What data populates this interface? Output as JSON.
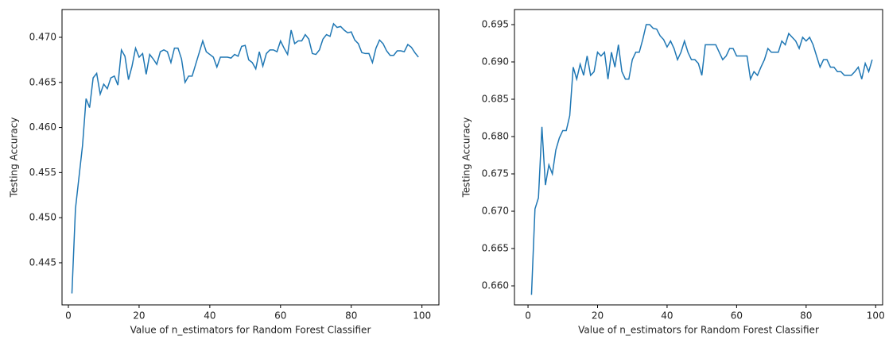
{
  "chart_data": [
    {
      "type": "line",
      "xlabel": "Value of n_estimators for Random Forest Classifier",
      "ylabel": "Testing Accuracy",
      "color": "#1f77b4",
      "x": [
        1,
        2,
        3,
        4,
        5,
        6,
        7,
        8,
        9,
        10,
        11,
        12,
        13,
        14,
        15,
        16,
        17,
        18,
        19,
        20,
        21,
        22,
        23,
        24,
        25,
        26,
        27,
        28,
        29,
        30,
        31,
        32,
        33,
        34,
        35,
        36,
        37,
        38,
        39,
        40,
        41,
        42,
        43,
        44,
        45,
        46,
        47,
        48,
        49,
        50,
        51,
        52,
        53,
        54,
        55,
        56,
        57,
        58,
        59,
        60,
        61,
        62,
        63,
        64,
        65,
        66,
        67,
        68,
        69,
        70,
        71,
        72,
        73,
        74,
        75,
        76,
        77,
        78,
        79,
        80,
        81,
        82,
        83,
        84,
        85,
        86,
        87,
        88,
        89,
        90,
        91,
        92,
        93,
        94,
        95,
        96,
        97,
        98,
        99
      ],
      "values": [
        0.4416,
        0.451,
        0.4545,
        0.458,
        0.4632,
        0.4622,
        0.4655,
        0.466,
        0.4637,
        0.4648,
        0.4643,
        0.4655,
        0.4657,
        0.4647,
        0.4686,
        0.4679,
        0.4653,
        0.4668,
        0.4688,
        0.4678,
        0.4682,
        0.4659,
        0.4681,
        0.4676,
        0.467,
        0.4684,
        0.4686,
        0.4684,
        0.4672,
        0.4688,
        0.4688,
        0.4676,
        0.465,
        0.4657,
        0.4657,
        0.467,
        0.4683,
        0.4696,
        0.4684,
        0.4681,
        0.4678,
        0.4667,
        0.4678,
        0.4678,
        0.4678,
        0.4677,
        0.4681,
        0.4679,
        0.469,
        0.4691,
        0.4675,
        0.4672,
        0.4665,
        0.4684,
        0.4668,
        0.4682,
        0.4686,
        0.4686,
        0.4684,
        0.4696,
        0.4688,
        0.4681,
        0.4708,
        0.4693,
        0.4696,
        0.4696,
        0.4703,
        0.4698,
        0.4682,
        0.4681,
        0.4686,
        0.4698,
        0.4703,
        0.4701,
        0.4715,
        0.4711,
        0.4712,
        0.4708,
        0.4705,
        0.4706,
        0.4697,
        0.4693,
        0.4683,
        0.4682,
        0.4682,
        0.4672,
        0.4688,
        0.4697,
        0.4693,
        0.4685,
        0.468,
        0.468,
        0.4685,
        0.4685,
        0.4684,
        0.4692,
        0.4689,
        0.4683,
        0.4678
      ],
      "xlim": [
        -1.8,
        104.8
      ],
      "xticks": [
        0,
        20,
        40,
        60,
        80,
        100
      ],
      "ylim": [
        0.44033,
        0.47308
      ],
      "yticks": [
        0.445,
        {
          "value": 0.45,
          "label": "0.450"
        },
        0.455,
        {
          "value": 0.46,
          "label": "0.460"
        },
        0.465,
        {
          "value": 0.47,
          "label": "0.470"
        }
      ]
    },
    {
      "type": "line",
      "xlabel": "Value of n_estimators for Random Forest Classifier",
      "ylabel": "Testing Accuracy",
      "color": "#1f77b4",
      "x": [
        1,
        2,
        3,
        4,
        5,
        6,
        7,
        8,
        9,
        10,
        11,
        12,
        13,
        14,
        15,
        16,
        17,
        18,
        19,
        20,
        21,
        22,
        23,
        24,
        25,
        26,
        27,
        28,
        29,
        30,
        31,
        32,
        33,
        34,
        35,
        36,
        37,
        38,
        39,
        40,
        41,
        42,
        43,
        44,
        45,
        46,
        47,
        48,
        49,
        50,
        51,
        52,
        53,
        54,
        55,
        56,
        57,
        58,
        59,
        60,
        61,
        62,
        63,
        64,
        65,
        66,
        67,
        68,
        69,
        70,
        71,
        72,
        73,
        74,
        75,
        76,
        77,
        78,
        79,
        80,
        81,
        82,
        83,
        84,
        85,
        86,
        87,
        88,
        89,
        90,
        91,
        92,
        93,
        94,
        95,
        96,
        97,
        98,
        99
      ],
      "values": [
        0.6588,
        0.6703,
        0.6718,
        0.6813,
        0.6735,
        0.6762,
        0.675,
        0.6782,
        0.6798,
        0.6808,
        0.6808,
        0.6828,
        0.6893,
        0.6877,
        0.6897,
        0.6882,
        0.6908,
        0.6882,
        0.6887,
        0.6913,
        0.6908,
        0.6913,
        0.6877,
        0.6913,
        0.6893,
        0.6923,
        0.6887,
        0.6877,
        0.6877,
        0.6903,
        0.6913,
        0.6913,
        0.693,
        0.695,
        0.695,
        0.6945,
        0.6944,
        0.6935,
        0.693,
        0.692,
        0.6928,
        0.6918,
        0.6903,
        0.6913,
        0.6928,
        0.6913,
        0.6903,
        0.6903,
        0.6898,
        0.6882,
        0.6923,
        0.6923,
        0.6923,
        0.6923,
        0.6913,
        0.6903,
        0.6908,
        0.6918,
        0.6918,
        0.6908,
        0.6908,
        0.6908,
        0.6908,
        0.6877,
        0.6887,
        0.6882,
        0.6893,
        0.6903,
        0.6918,
        0.6913,
        0.6913,
        0.6913,
        0.6928,
        0.6923,
        0.6938,
        0.6933,
        0.6928,
        0.6918,
        0.6933,
        0.6928,
        0.6933,
        0.6923,
        0.6908,
        0.6893,
        0.6903,
        0.6903,
        0.6893,
        0.6893,
        0.6887,
        0.6887,
        0.6882,
        0.6882,
        0.6882,
        0.6887,
        0.6893,
        0.6877,
        0.6898,
        0.6887,
        0.6903
      ],
      "xlim": [
        -3.9,
        102.0
      ],
      "xticks": [
        0,
        20,
        40,
        60,
        80,
        100
      ],
      "ylim": [
        0.65745,
        0.69702
      ],
      "yticks": [
        {
          "value": 0.66,
          "label": "0.660"
        },
        0.665,
        {
          "value": 0.67,
          "label": "0.670"
        },
        0.675,
        {
          "value": 0.68,
          "label": "0.680"
        },
        0.685,
        {
          "value": 0.69,
          "label": "0.690"
        },
        0.695
      ]
    }
  ]
}
